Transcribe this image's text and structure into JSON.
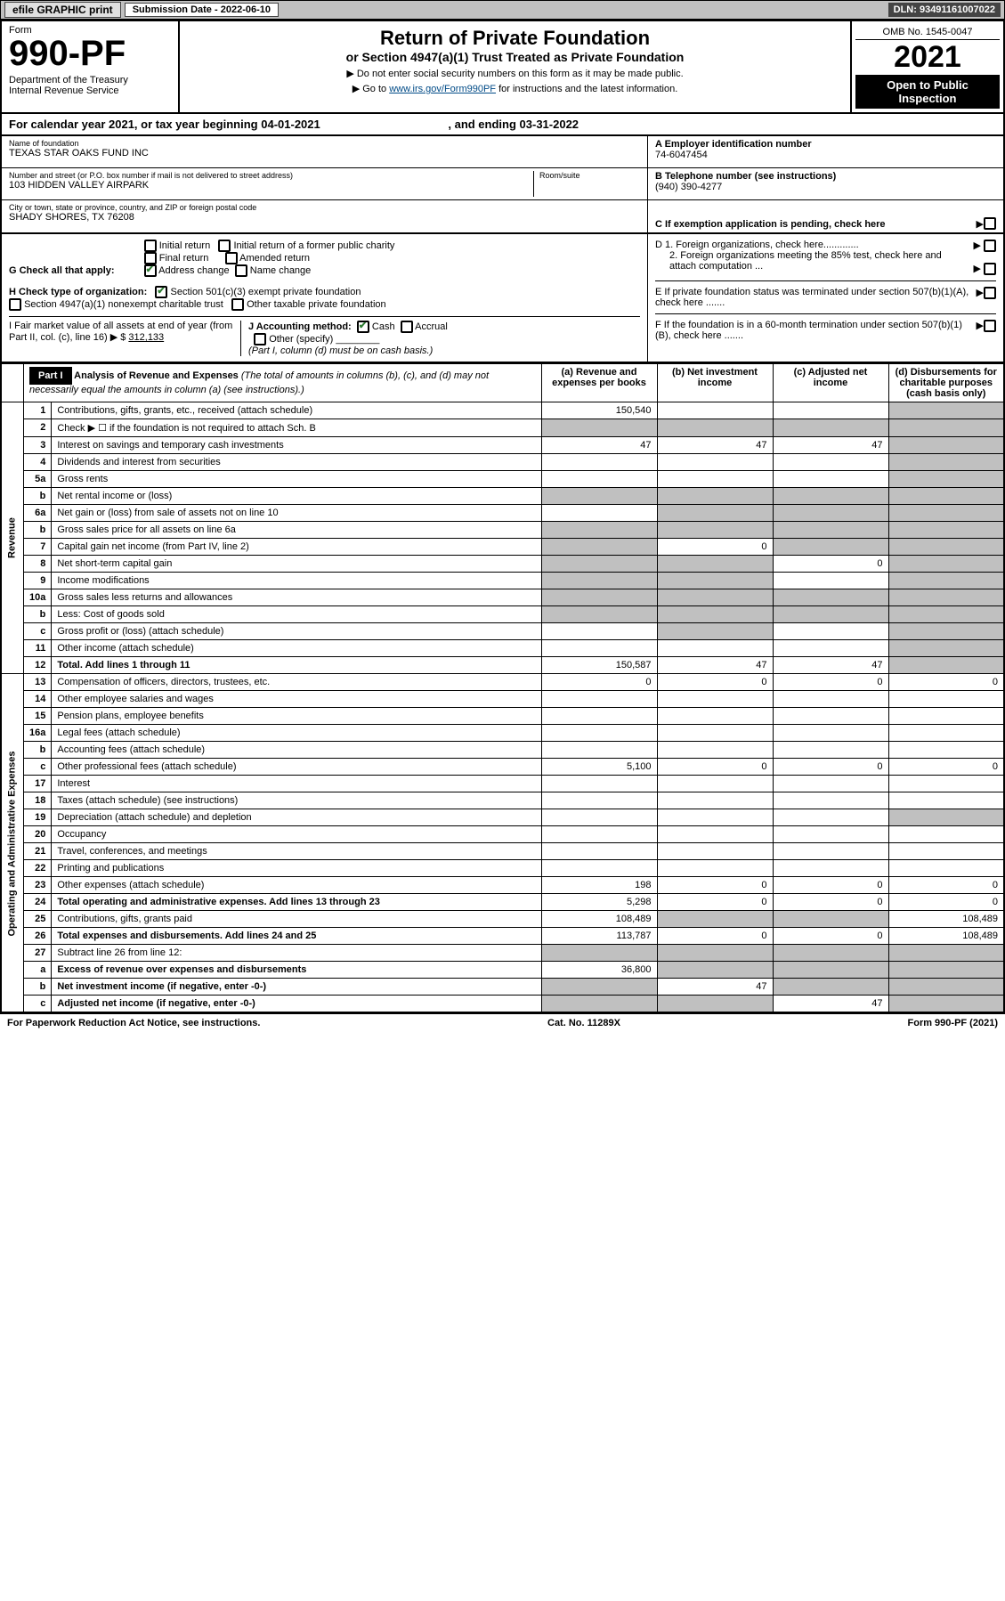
{
  "topbar": {
    "efile": "efile GRAPHIC print",
    "submission_label": "Submission Date - ",
    "submission_date": "2022-06-10",
    "dln_label": "DLN: ",
    "dln": "93491161007022"
  },
  "header": {
    "form_label": "Form",
    "form_number": "990-PF",
    "dept": "Department of the Treasury\nInternal Revenue Service",
    "title": "Return of Private Foundation",
    "subtitle": "or Section 4947(a)(1) Trust Treated as Private Foundation",
    "instr1": "▶ Do not enter social security numbers on this form as it may be made public.",
    "instr2_prefix": "▶ Go to ",
    "instr2_link": "www.irs.gov/Form990PF",
    "instr2_suffix": " for instructions and the latest information.",
    "omb": "OMB No. 1545-0047",
    "year": "2021",
    "open_public": "Open to Public Inspection"
  },
  "calrow": {
    "prefix": "For calendar year 2021, or tax year beginning ",
    "begin": "04-01-2021",
    "mid": " , and ending ",
    "end": "03-31-2022"
  },
  "entity": {
    "name_label": "Name of foundation",
    "name": "TEXAS STAR OAKS FUND INC",
    "street_label": "Number and street (or P.O. box number if mail is not delivered to street address)",
    "street": "103 HIDDEN VALLEY AIRPARK",
    "room_label": "Room/suite",
    "city_label": "City or town, state or province, country, and ZIP or foreign postal code",
    "city": "SHADY SHORES, TX  76208",
    "ein_label": "A Employer identification number",
    "ein": "74-6047454",
    "phone_label": "B Telephone number (see instructions)",
    "phone": "(940) 390-4277",
    "c_label": "C  If exemption application is pending, check here"
  },
  "sectionG": {
    "label": "G Check all that apply:",
    "opts": [
      "Initial return",
      "Initial return of a former public charity",
      "Final return",
      "Amended return",
      "Address change",
      "Name change"
    ],
    "checked": [
      false,
      false,
      false,
      false,
      true,
      false
    ]
  },
  "sectionH": {
    "label": "H Check type of organization:",
    "opt1": "Section 501(c)(3) exempt private foundation",
    "opt2": "Section 4947(a)(1) nonexempt charitable trust",
    "opt3": "Other taxable private foundation"
  },
  "sectionI": {
    "label": "I Fair market value of all assets at end of year (from Part II, col. (c), line 16) ▶ $",
    "value": "312,133"
  },
  "sectionJ": {
    "label": "J Accounting method:",
    "cash": "Cash",
    "accrual": "Accrual",
    "other": "Other (specify)",
    "note": "(Part I, column (d) must be on cash basis.)"
  },
  "sectionD": {
    "d1": "D 1. Foreign organizations, check here.............",
    "d2": "2. Foreign organizations meeting the 85% test, check here and attach computation ...",
    "e": "E  If private foundation status was terminated under section 507(b)(1)(A), check here .......",
    "f": "F  If the foundation is in a 60-month termination under section 507(b)(1)(B), check here ......."
  },
  "part1": {
    "badge": "Part I",
    "title": "Analysis of Revenue and Expenses",
    "note": " (The total of amounts in columns (b), (c), and (d) may not necessarily equal the amounts in column (a) (see instructions).)",
    "cols": {
      "a": "(a) Revenue and expenses per books",
      "b": "(b) Net investment income",
      "c": "(c) Adjusted net income",
      "d": "(d) Disbursements for charitable purposes (cash basis only)"
    }
  },
  "sidelabels": {
    "revenue": "Revenue",
    "opex": "Operating and Administrative Expenses"
  },
  "rows": [
    {
      "n": "1",
      "desc": "Contributions, gifts, grants, etc., received (attach schedule)",
      "a": "150,540",
      "b": "",
      "c": "",
      "d": "",
      "dGrey": true
    },
    {
      "n": "2",
      "desc": "Check ▶ ☐ if the foundation is not required to attach Sch. B",
      "a": "",
      "b": "",
      "c": "",
      "d": "",
      "aGrey": true,
      "bGrey": true,
      "cGrey": true,
      "dGrey": true,
      "bold": false
    },
    {
      "n": "3",
      "desc": "Interest on savings and temporary cash investments",
      "a": "47",
      "b": "47",
      "c": "47",
      "d": "",
      "dGrey": true
    },
    {
      "n": "4",
      "desc": "Dividends and interest from securities",
      "a": "",
      "b": "",
      "c": "",
      "d": "",
      "dGrey": true
    },
    {
      "n": "5a",
      "desc": "Gross rents",
      "a": "",
      "b": "",
      "c": "",
      "d": "",
      "dGrey": true
    },
    {
      "n": "b",
      "desc": "Net rental income or (loss)",
      "a": "",
      "b": "",
      "c": "",
      "d": "",
      "aGrey": true,
      "bGrey": true,
      "cGrey": true,
      "dGrey": true
    },
    {
      "n": "6a",
      "desc": "Net gain or (loss) from sale of assets not on line 10",
      "a": "",
      "b": "",
      "c": "",
      "d": "",
      "bGrey": true,
      "cGrey": true,
      "dGrey": true
    },
    {
      "n": "b",
      "desc": "Gross sales price for all assets on line 6a",
      "a": "",
      "b": "",
      "c": "",
      "d": "",
      "aGrey": true,
      "bGrey": true,
      "cGrey": true,
      "dGrey": true
    },
    {
      "n": "7",
      "desc": "Capital gain net income (from Part IV, line 2)",
      "a": "",
      "b": "0",
      "c": "",
      "d": "",
      "aGrey": true,
      "cGrey": true,
      "dGrey": true
    },
    {
      "n": "8",
      "desc": "Net short-term capital gain",
      "a": "",
      "b": "",
      "c": "0",
      "d": "",
      "aGrey": true,
      "bGrey": true,
      "dGrey": true
    },
    {
      "n": "9",
      "desc": "Income modifications",
      "a": "",
      "b": "",
      "c": "",
      "d": "",
      "aGrey": true,
      "bGrey": true,
      "dGrey": true
    },
    {
      "n": "10a",
      "desc": "Gross sales less returns and allowances",
      "a": "",
      "b": "",
      "c": "",
      "d": "",
      "aGrey": true,
      "bGrey": true,
      "cGrey": true,
      "dGrey": true
    },
    {
      "n": "b",
      "desc": "Less: Cost of goods sold",
      "a": "",
      "b": "",
      "c": "",
      "d": "",
      "aGrey": true,
      "bGrey": true,
      "cGrey": true,
      "dGrey": true
    },
    {
      "n": "c",
      "desc": "Gross profit or (loss) (attach schedule)",
      "a": "",
      "b": "",
      "c": "",
      "d": "",
      "bGrey": true,
      "dGrey": true
    },
    {
      "n": "11",
      "desc": "Other income (attach schedule)",
      "a": "",
      "b": "",
      "c": "",
      "d": "",
      "dGrey": true
    },
    {
      "n": "12",
      "desc": "Total. Add lines 1 through 11",
      "a": "150,587",
      "b": "47",
      "c": "47",
      "d": "",
      "bold": true,
      "dGrey": true
    },
    {
      "n": "13",
      "desc": "Compensation of officers, directors, trustees, etc.",
      "a": "0",
      "b": "0",
      "c": "0",
      "d": "0"
    },
    {
      "n": "14",
      "desc": "Other employee salaries and wages",
      "a": "",
      "b": "",
      "c": "",
      "d": ""
    },
    {
      "n": "15",
      "desc": "Pension plans, employee benefits",
      "a": "",
      "b": "",
      "c": "",
      "d": ""
    },
    {
      "n": "16a",
      "desc": "Legal fees (attach schedule)",
      "a": "",
      "b": "",
      "c": "",
      "d": ""
    },
    {
      "n": "b",
      "desc": "Accounting fees (attach schedule)",
      "a": "",
      "b": "",
      "c": "",
      "d": ""
    },
    {
      "n": "c",
      "desc": "Other professional fees (attach schedule)",
      "a": "5,100",
      "b": "0",
      "c": "0",
      "d": "0"
    },
    {
      "n": "17",
      "desc": "Interest",
      "a": "",
      "b": "",
      "c": "",
      "d": ""
    },
    {
      "n": "18",
      "desc": "Taxes (attach schedule) (see instructions)",
      "a": "",
      "b": "",
      "c": "",
      "d": ""
    },
    {
      "n": "19",
      "desc": "Depreciation (attach schedule) and depletion",
      "a": "",
      "b": "",
      "c": "",
      "d": "",
      "dGrey": true
    },
    {
      "n": "20",
      "desc": "Occupancy",
      "a": "",
      "b": "",
      "c": "",
      "d": ""
    },
    {
      "n": "21",
      "desc": "Travel, conferences, and meetings",
      "a": "",
      "b": "",
      "c": "",
      "d": ""
    },
    {
      "n": "22",
      "desc": "Printing and publications",
      "a": "",
      "b": "",
      "c": "",
      "d": ""
    },
    {
      "n": "23",
      "desc": "Other expenses (attach schedule)",
      "a": "198",
      "b": "0",
      "c": "0",
      "d": "0"
    },
    {
      "n": "24",
      "desc": "Total operating and administrative expenses. Add lines 13 through 23",
      "a": "5,298",
      "b": "0",
      "c": "0",
      "d": "0",
      "bold": true
    },
    {
      "n": "25",
      "desc": "Contributions, gifts, grants paid",
      "a": "108,489",
      "b": "",
      "c": "",
      "d": "108,489",
      "bGrey": true,
      "cGrey": true
    },
    {
      "n": "26",
      "desc": "Total expenses and disbursements. Add lines 24 and 25",
      "a": "113,787",
      "b": "0",
      "c": "0",
      "d": "108,489",
      "bold": true
    },
    {
      "n": "27",
      "desc": "Subtract line 26 from line 12:",
      "a": "",
      "b": "",
      "c": "",
      "d": "",
      "aGrey": true,
      "bGrey": true,
      "cGrey": true,
      "dGrey": true
    },
    {
      "n": "a",
      "desc": "Excess of revenue over expenses and disbursements",
      "a": "36,800",
      "b": "",
      "c": "",
      "d": "",
      "bold": true,
      "bGrey": true,
      "cGrey": true,
      "dGrey": true
    },
    {
      "n": "b",
      "desc": "Net investment income (if negative, enter -0-)",
      "a": "",
      "b": "47",
      "c": "",
      "d": "",
      "bold": true,
      "aGrey": true,
      "cGrey": true,
      "dGrey": true
    },
    {
      "n": "c",
      "desc": "Adjusted net income (if negative, enter -0-)",
      "a": "",
      "b": "",
      "c": "47",
      "d": "",
      "bold": true,
      "aGrey": true,
      "bGrey": true,
      "dGrey": true
    }
  ],
  "footer": {
    "left": "For Paperwork Reduction Act Notice, see instructions.",
    "mid": "Cat. No. 11289X",
    "right": "Form 990-PF (2021)"
  },
  "colors": {
    "topbar_bg": "#c0c0c0",
    "grey_cell": "#c0c0c0",
    "link": "#004b87",
    "check": "#2e7d32"
  }
}
